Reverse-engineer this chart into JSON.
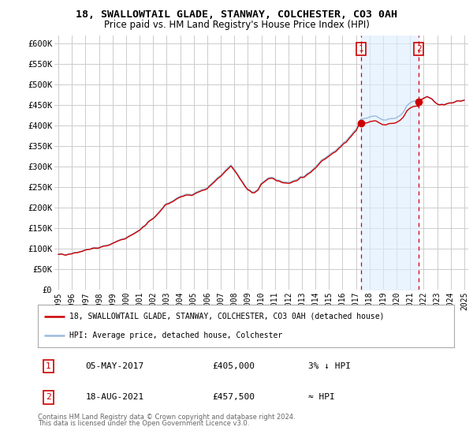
{
  "title": "18, SWALLOWTAIL GLADE, STANWAY, COLCHESTER, CO3 0AH",
  "subtitle": "Price paid vs. HM Land Registry's House Price Index (HPI)",
  "legend_line1": "18, SWALLOWTAIL GLADE, STANWAY, COLCHESTER, CO3 0AH (detached house)",
  "legend_line2": "HPI: Average price, detached house, Colchester",
  "marker1_label": "1",
  "marker1_date": "05-MAY-2017",
  "marker1_price": "£405,000",
  "marker1_rel": "3% ↓ HPI",
  "marker1_year": 2017.37,
  "marker1_value": 405000,
  "marker2_label": "2",
  "marker2_date": "18-AUG-2021",
  "marker2_price": "£457,500",
  "marker2_rel": "≈ HPI",
  "marker2_year": 2021.63,
  "marker2_value": 457500,
  "ylim": [
    0,
    620000
  ],
  "yticks": [
    0,
    50000,
    100000,
    150000,
    200000,
    250000,
    300000,
    350000,
    400000,
    450000,
    500000,
    550000,
    600000
  ],
  "xlim": [
    1994.7,
    2025.3
  ],
  "xticks": [
    1995,
    1996,
    1997,
    1998,
    1999,
    2000,
    2001,
    2002,
    2003,
    2004,
    2005,
    2006,
    2007,
    2008,
    2009,
    2010,
    2011,
    2012,
    2013,
    2014,
    2015,
    2016,
    2017,
    2018,
    2019,
    2020,
    2021,
    2022,
    2023,
    2024,
    2025
  ],
  "red_color": "#cc0000",
  "blue_color": "#99bbdd",
  "shade_color": "#ddeeff",
  "marker_box_color": "#cc0000",
  "background_color": "#ffffff",
  "grid_color": "#cccccc",
  "footnote1": "Contains HM Land Registry data © Crown copyright and database right 2024.",
  "footnote2": "This data is licensed under the Open Government Licence v3.0."
}
